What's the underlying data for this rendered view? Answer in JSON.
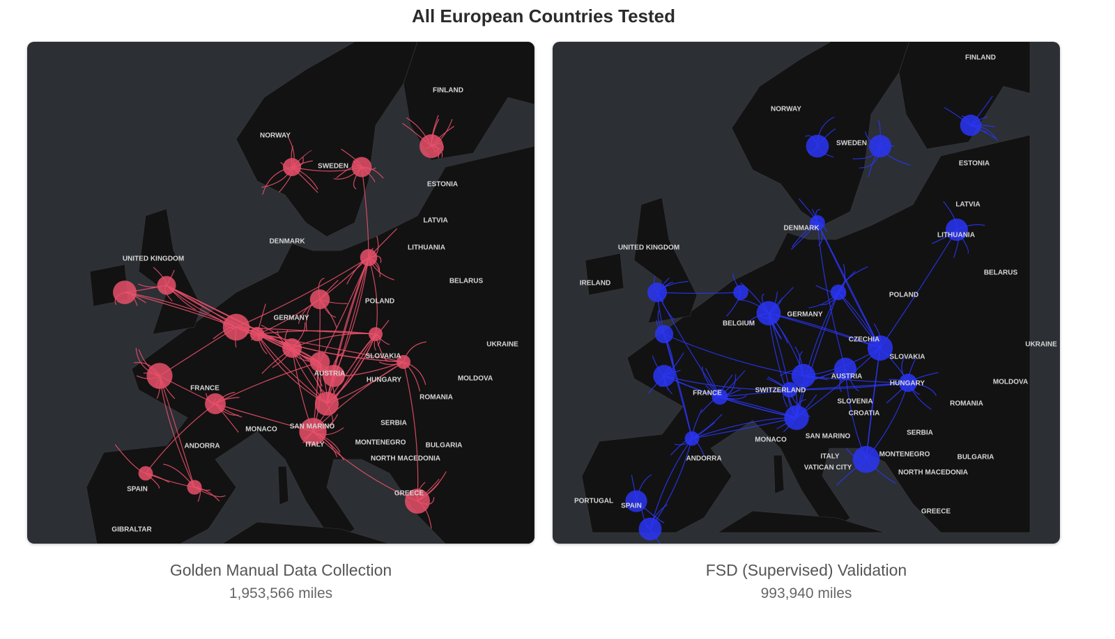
{
  "title": "All European Countries Tested",
  "panels": [
    {
      "caption": "Golden Manual Data Collection",
      "total": "1,953,566 miles",
      "route_color": "#e8506a",
      "labels": [
        "FINLAND",
        "NORWAY",
        "SWEDEN",
        "ESTONIA",
        "LATVIA",
        "DENMARK",
        "LITHUANIA",
        "UNITED KINGDOM",
        "BELARUS",
        "GERMANY",
        "POLAND",
        "UKRAINE",
        "SLOVAKIA",
        "AUSTRIA",
        "HUNGARY",
        "MOLDOVA",
        "FRANCE",
        "ROMANIA",
        "MONACO",
        "SAN MARINO",
        "SERBIA",
        "ANDORRA",
        "ITALY",
        "MONTENEGRO",
        "BULGARIA",
        "NORTH MACEDONIA",
        "GREECE",
        "SPAIN",
        "GIBRALTAR"
      ]
    },
    {
      "caption": "FSD (Supervised) Validation",
      "total": "993,940 miles",
      "route_color": "#2a35f5",
      "labels": [
        "FINLAND",
        "NORWAY",
        "SWEDEN",
        "ESTONIA",
        "LATVIA",
        "DENMARK",
        "LITHUANIA",
        "UNITED KINGDOM",
        "IRELAND",
        "BELARUS",
        "POLAND",
        "GERMANY",
        "BELGIUM",
        "CZECHIA",
        "UKRAINE",
        "SLOVAKIA",
        "AUSTRIA",
        "HUNGARY",
        "MOLDOVA",
        "FRANCE",
        "SWITZERLAND",
        "SLOVENIA",
        "ROMANIA",
        "CROATIA",
        "SERBIA",
        "SAN MARINO",
        "MONACO",
        "ANDORRA",
        "MONTENEGRO",
        "BULGARIA",
        "ITALY",
        "VATICAN CITY",
        "NORTH MACEDONIA",
        "PORTUGAL",
        "SPAIN",
        "GREECE"
      ]
    }
  ]
}
